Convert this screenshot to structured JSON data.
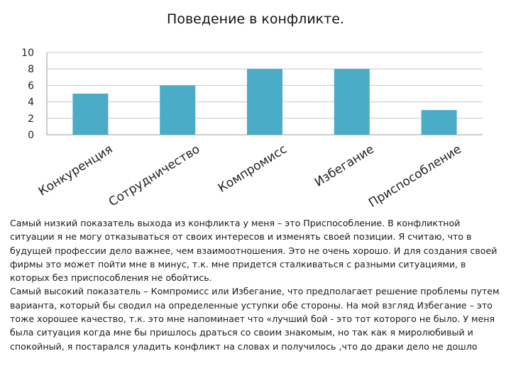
{
  "chart_data": {
    "type": "bar",
    "title": "Поведение в конфликте.",
    "categories": [
      "Конкуренция",
      "Сотрудничество",
      "Компромисс",
      "Избегание",
      "Приспособление"
    ],
    "values": [
      5,
      6,
      8,
      8,
      3
    ],
    "yticks": [
      "0",
      "2",
      "4",
      "6",
      "8",
      "10"
    ],
    "ylim": [
      0,
      10
    ],
    "xlabel": "",
    "ylabel": "",
    "grid": true,
    "legend": "none",
    "bar_color": "#4aacc6"
  },
  "description": {
    "paragraph1": "Самый низкий показатель выхода из конфликта у меня – это Приспособление. В конфликтной ситуации я не могу отказываться от своих интересов и изменять своей позиции. Я считаю, что в будущей профессии дело важнее, чем взаимоотношения. Это не очень хорошо. И для создания своей фирмы это может пойти мне в минус, т.к. мне придется сталкиваться с разными ситуациями, в которых без приспособления не обойтись.",
    "paragraph2": "Самый высокий показатель – Компромисс или Избегание, что предполагает решение проблемы путем варианта, который бы сводил на определенные уступки обе стороны. На мой взгляд Избегание – это тоже хорошее качество, т.к. это мне напоминает что «лучший бой - это тот которого не было. У меня была ситуация когда мне бы пришлось драться со своим знакомым, но так как я миролюбивый и спокойный, я постарался уладить конфликт на словах и получилось ,что до драки дело не дошло"
  }
}
